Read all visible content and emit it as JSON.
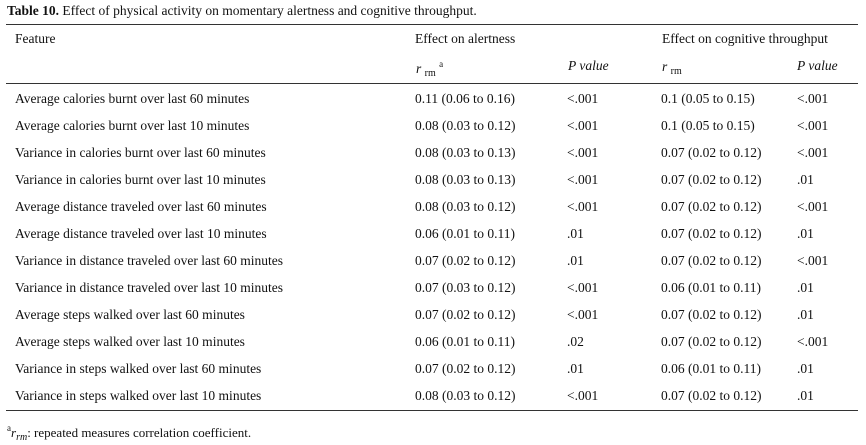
{
  "caption": {
    "label": "Table 10.",
    "text": "Effect of physical activity on momentary alertness and cognitive throughput."
  },
  "header": {
    "feature": "Feature",
    "group_alertness": "Effect on alertness",
    "group_throughput": "Effect on cognitive throughput",
    "r_symbol": "r",
    "r_sub": "rm",
    "r_sup": "a",
    "p_label": "P value"
  },
  "rows": [
    {
      "feature": "Average calories burnt over last 60 minutes",
      "r_alert": "0.11 (0.06 to 0.16)",
      "p_alert": "<.001",
      "r_cog": "0.1 (0.05 to 0.15)",
      "p_cog": "<.001"
    },
    {
      "feature": "Average calories burnt over last 10 minutes",
      "r_alert": "0.08 (0.03 to 0.12)",
      "p_alert": "<.001",
      "r_cog": "0.1 (0.05 to 0.15)",
      "p_cog": "<.001"
    },
    {
      "feature": "Variance in calories burnt over last 60 minutes",
      "r_alert": "0.08 (0.03 to 0.13)",
      "p_alert": "<.001",
      "r_cog": "0.07 (0.02 to 0.12)",
      "p_cog": "<.001"
    },
    {
      "feature": "Variance in calories burnt over last 10 minutes",
      "r_alert": "0.08 (0.03 to 0.13)",
      "p_alert": "<.001",
      "r_cog": "0.07 (0.02 to 0.12)",
      "p_cog": ".01"
    },
    {
      "feature": "Average distance traveled over last 60 minutes",
      "r_alert": "0.08 (0.03 to 0.12)",
      "p_alert": "<.001",
      "r_cog": "0.07 (0.02 to 0.12)",
      "p_cog": "<.001"
    },
    {
      "feature": "Average distance traveled over last 10 minutes",
      "r_alert": "0.06 (0.01 to 0.11)",
      "p_alert": ".01",
      "r_cog": "0.07 (0.02 to 0.12)",
      "p_cog": ".01"
    },
    {
      "feature": "Variance in distance traveled over last 60 minutes",
      "r_alert": "0.07 (0.02 to 0.12)",
      "p_alert": ".01",
      "r_cog": "0.07 (0.02 to 0.12)",
      "p_cog": "<.001"
    },
    {
      "feature": "Variance in distance traveled over last 10 minutes",
      "r_alert": "0.07 (0.03 to 0.12)",
      "p_alert": "<.001",
      "r_cog": "0.06 (0.01 to 0.11)",
      "p_cog": ".01"
    },
    {
      "feature": "Average steps walked over last 60 minutes",
      "r_alert": "0.07 (0.02 to 0.12)",
      "p_alert": "<.001",
      "r_cog": "0.07 (0.02 to 0.12)",
      "p_cog": ".01"
    },
    {
      "feature": "Average steps walked over last 10 minutes",
      "r_alert": "0.06 (0.01 to 0.11)",
      "p_alert": ".02",
      "r_cog": "0.07 (0.02 to 0.12)",
      "p_cog": "<.001"
    },
    {
      "feature": "Variance in steps walked over last 60 minutes",
      "r_alert": "0.07 (0.02 to 0.12)",
      "p_alert": ".01",
      "r_cog": "0.06 (0.01 to 0.11)",
      "p_cog": ".01"
    },
    {
      "feature": "Variance in steps walked over last 10 minutes",
      "r_alert": "0.08 (0.03 to 0.12)",
      "p_alert": "<.001",
      "r_cog": "0.07 (0.02 to 0.12)",
      "p_cog": ".01"
    }
  ],
  "footnote": {
    "marker": "a",
    "symbol": "r",
    "sub": "rm",
    "text": ": repeated measures correlation coefficient."
  }
}
